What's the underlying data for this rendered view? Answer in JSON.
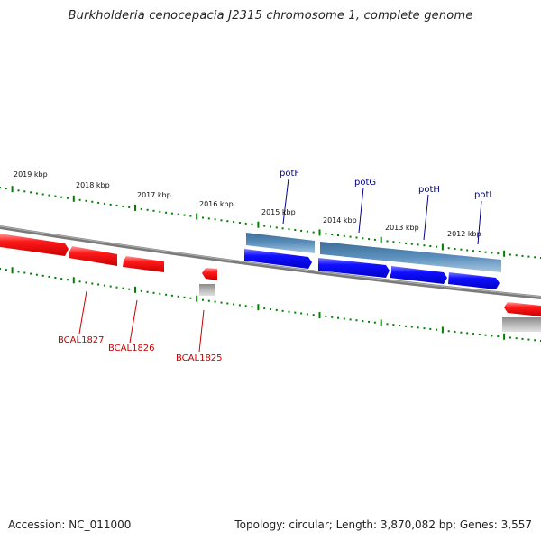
{
  "title": "Burkholderia cenocepacia J2315 chromosome 1, complete genome",
  "footer": {
    "accession": "Accession: NC_011000",
    "summary": "Topology: circular; Length: 3,870,082 bp; Genes: 3,557"
  },
  "colors": {
    "forward_gene": "#0000ff",
    "forward_gene_top": "#4682b4",
    "reverse_gene": "#ff0000",
    "reverse_gene_grey": "#aaaaaa",
    "backbone": "#808080",
    "tick": "#008000",
    "top_label": "#00008b",
    "bottom_label": "#cc0000"
  },
  "scale_labels": [
    "2019 kbp",
    "2018 kbp",
    "2017 kbp",
    "2016 kbp",
    "2015 kbp",
    "2014 kbp",
    "2013 kbp",
    "2012 kbp"
  ],
  "top_gene_labels": [
    "potF",
    "potG",
    "potH",
    "potI"
  ],
  "bottom_gene_labels": [
    "BCAL1827",
    "BCAL1826",
    "BCAL1825"
  ]
}
